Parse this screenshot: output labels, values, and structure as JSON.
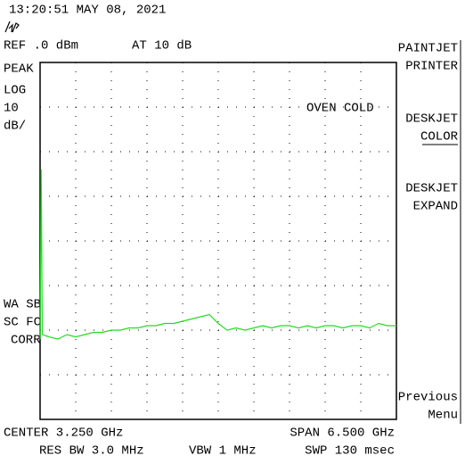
{
  "header": {
    "timestamp": "13:20:51 MAY 08, 2021",
    "ref_level": "REF .0 dBm",
    "attenuation": "AT 10 dB"
  },
  "left_annotations": {
    "detector": "PEAK",
    "scale": "LOG",
    "scale_value": "10",
    "scale_unit": "dB/",
    "flags": [
      "WA SB",
      "SC FC",
      "CORR"
    ]
  },
  "status": "OVEN COLD",
  "softkeys": [
    [
      "PAINTJET",
      "PRINTER"
    ],
    [
      "DESKJET",
      "COLOR"
    ],
    [
      "DESKJET",
      "EXPAND"
    ],
    [
      "Previous",
      "Menu"
    ]
  ],
  "footer": {
    "center": "CENTER 3.250 GHz",
    "span": "SPAN 6.500 GHz",
    "rbw": "RES BW 3.0 MHz",
    "vbw": "VBW 1 MHz",
    "sweep": "SWP 130 msec"
  },
  "chart_data": {
    "type": "line",
    "color": "#22dd22",
    "xlim": [
      0,
      6.5
    ],
    "ylim": [
      -80,
      0
    ],
    "x": [
      0,
      0.02,
      0.04,
      0.1625,
      0.325,
      0.4875,
      0.65,
      0.8125,
      0.975,
      1.1375,
      1.3,
      1.4625,
      1.625,
      1.7875,
      1.95,
      2.1125,
      2.275,
      2.4375,
      2.6,
      2.7625,
      2.925,
      3.0875,
      3.25,
      3.4125,
      3.575,
      3.7375,
      3.9,
      4.0625,
      4.225,
      4.3875,
      4.55,
      4.7125,
      4.875,
      5.0375,
      5.2,
      5.3625,
      5.525,
      5.6875,
      5.85,
      6.0125,
      6.175,
      6.3375,
      6.5
    ],
    "values": [
      -62,
      -24,
      -61,
      -61.5,
      -62,
      -61,
      -61.5,
      -61,
      -60.5,
      -60.5,
      -60,
      -60,
      -59.5,
      -59.5,
      -59,
      -59,
      -58.5,
      -58.5,
      -58,
      -57.5,
      -57,
      -56.5,
      -58.5,
      -60,
      -59.5,
      -60,
      -59.5,
      -59,
      -59.5,
      -59,
      -59,
      -59.5,
      -59,
      -59.5,
      -59,
      -59,
      -59.5,
      -59,
      -59,
      -59.5,
      -58.5,
      -59,
      -59
    ]
  }
}
